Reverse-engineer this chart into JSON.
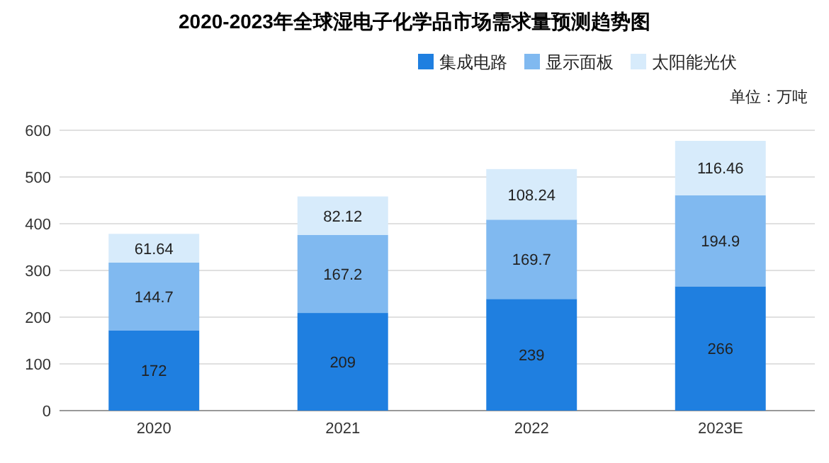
{
  "chart_data": {
    "type": "bar",
    "title": "2020-2023年全球湿电子化学品市场需求量预测趋势图",
    "annotations": [
      "单位：万吨"
    ],
    "categories": [
      "2020",
      "2021",
      "2022",
      "2023E"
    ],
    "stacked": true,
    "data_labels": true,
    "legend": "top right",
    "grid": "y",
    "ylim": [
      0,
      600
    ],
    "yticks": [
      0,
      100,
      200,
      300,
      400,
      500,
      600
    ],
    "series": [
      {
        "name": "集成电路",
        "color": "#1f7fe0",
        "values": [
          172,
          209,
          239,
          266
        ]
      },
      {
        "name": "显示面板",
        "color": "#80b9f0",
        "values": [
          144.7,
          167.2,
          169.7,
          194.9
        ]
      },
      {
        "name": "太阳能光伏",
        "color": "#d7ebfb",
        "values": [
          61.64,
          82.12,
          108.24,
          116.46
        ]
      }
    ]
  }
}
